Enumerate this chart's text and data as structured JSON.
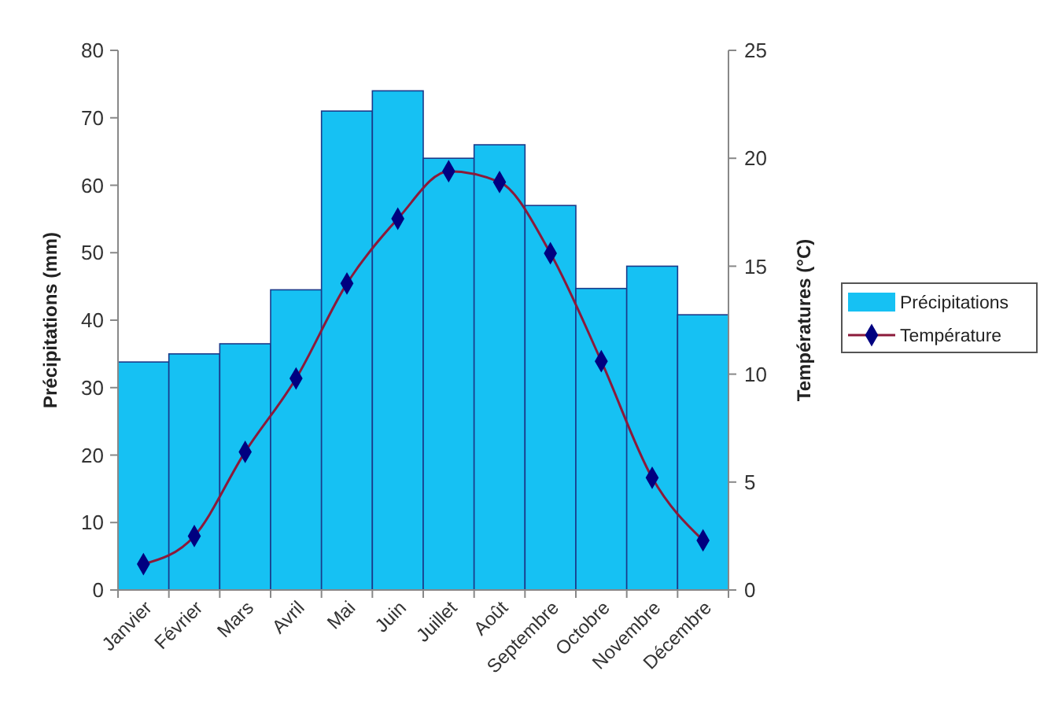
{
  "chart_data": {
    "type": "bar",
    "categories": [
      "Janvier",
      "Février",
      "Mars",
      "Avril",
      "Mai",
      "Juin",
      "Juillet",
      "Août",
      "Septembre",
      "Octobre",
      "Novembre",
      "Décembre"
    ],
    "ylabel": "Précipitations (mm)",
    "y2label": "Températures (°C)",
    "ylim": [
      0,
      80
    ],
    "yticks": [
      0,
      10,
      20,
      30,
      40,
      50,
      60,
      70,
      80
    ],
    "y2lim": [
      0,
      25
    ],
    "y2ticks": [
      0,
      5,
      10,
      15,
      20,
      25
    ],
    "series": [
      {
        "name": "Précipitations",
        "color": "#16c1f3",
        "values": [
          33.8,
          35,
          36.5,
          44.5,
          71,
          74,
          64,
          66,
          57,
          44.7,
          48,
          40.8
        ]
      },
      {
        "name": "Température",
        "type": "line",
        "axis": "y2",
        "color": "#8b1a3a",
        "marker": "diamond",
        "values": [
          1.2,
          2.5,
          6.4,
          9.8,
          14.2,
          17.2,
          19.4,
          18.9,
          15.6,
          10.6,
          5.2,
          2.3
        ]
      }
    ],
    "legend": "right",
    "grid": false
  }
}
